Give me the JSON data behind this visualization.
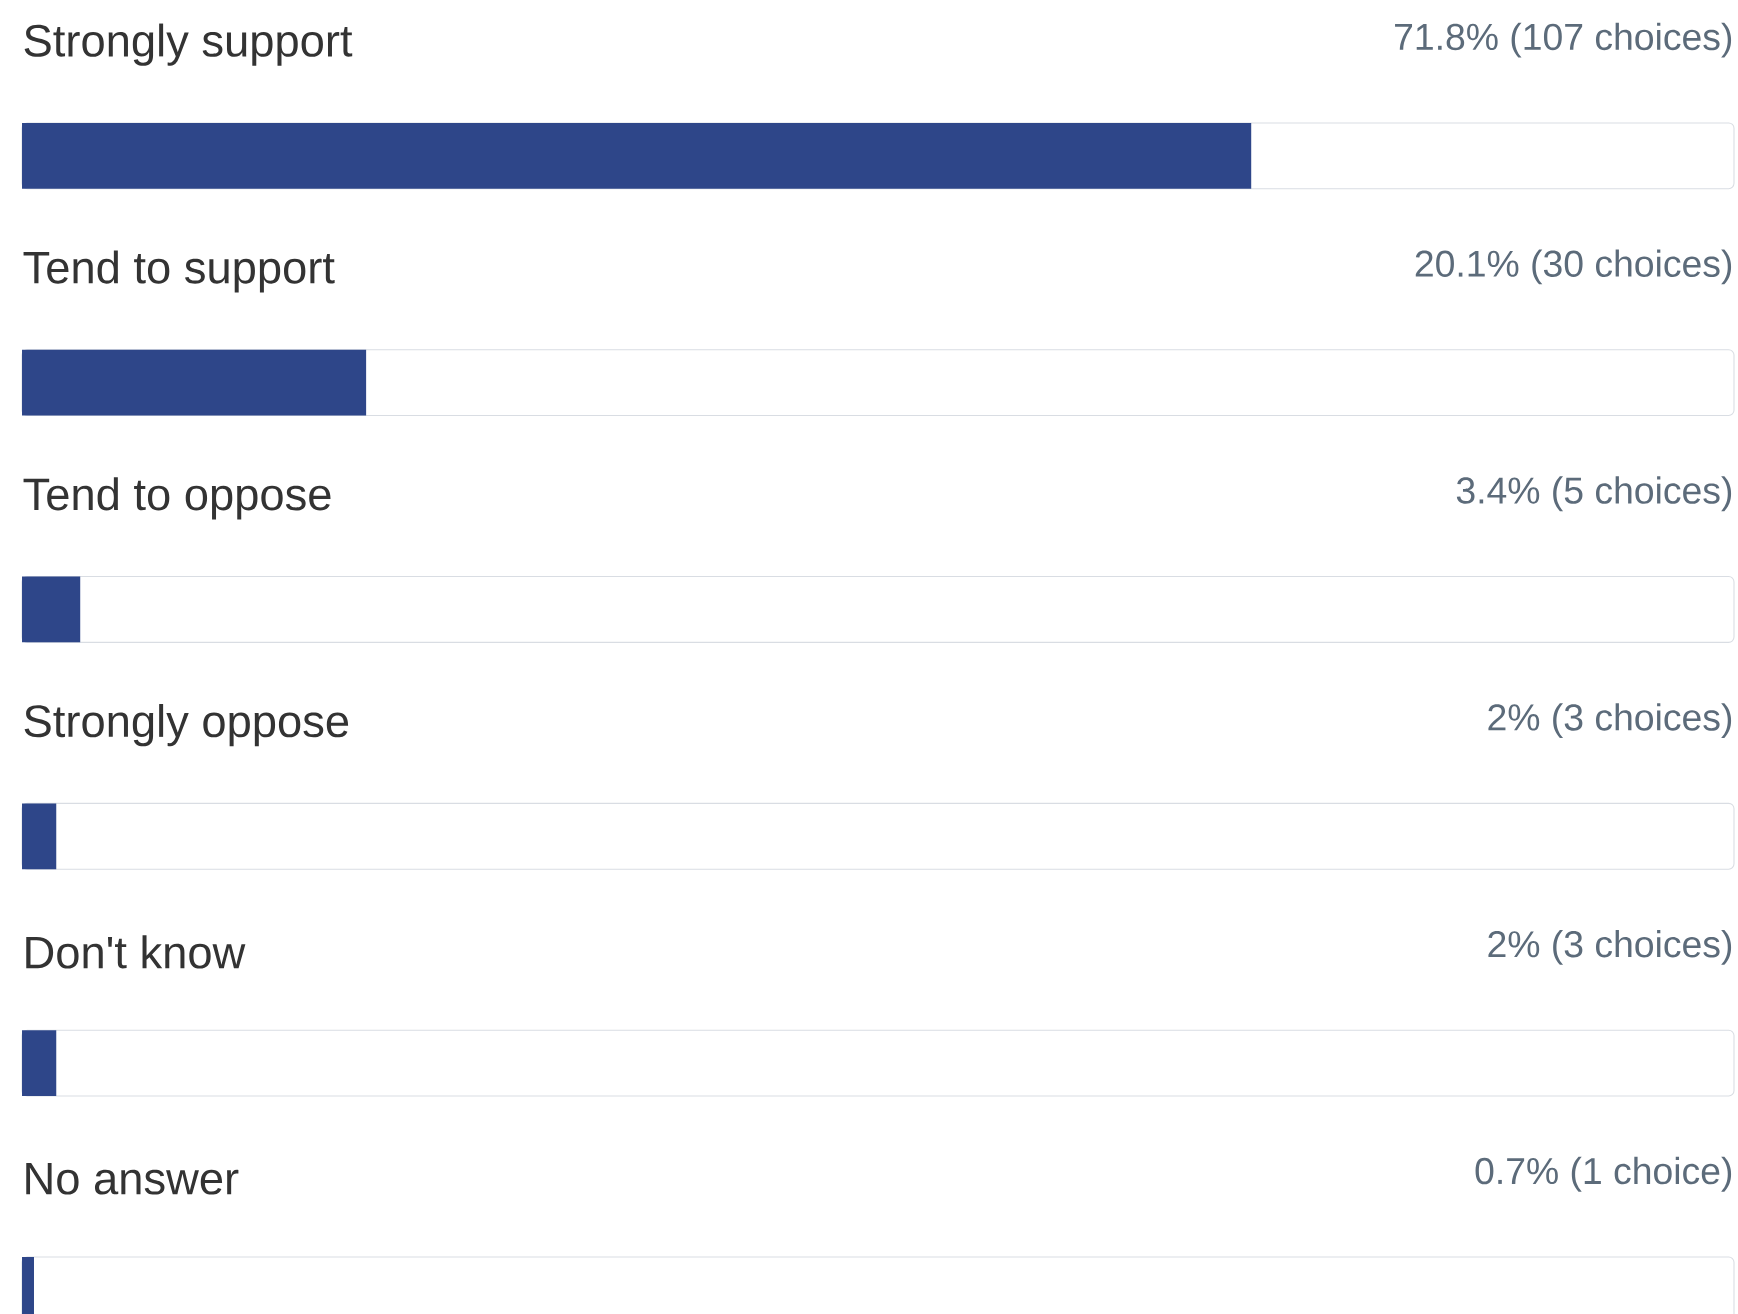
{
  "chart_data": {
    "type": "bar",
    "orientation": "horizontal",
    "categories": [
      "Strongly support",
      "Tend to support",
      "Tend to oppose",
      "Strongly oppose",
      "Don't know",
      "No answer"
    ],
    "values": [
      71.8,
      20.1,
      3.4,
      2,
      2,
      0.7
    ],
    "value_labels": [
      "71.8% (107 choices)",
      "20.1% (30 choices)",
      "3.4% (5 choices)",
      "2% (3 choices)",
      "2% (3 choices)",
      "0.7% (1 choice)"
    ],
    "color": "#2e4689",
    "xlim": [
      0,
      100
    ]
  }
}
